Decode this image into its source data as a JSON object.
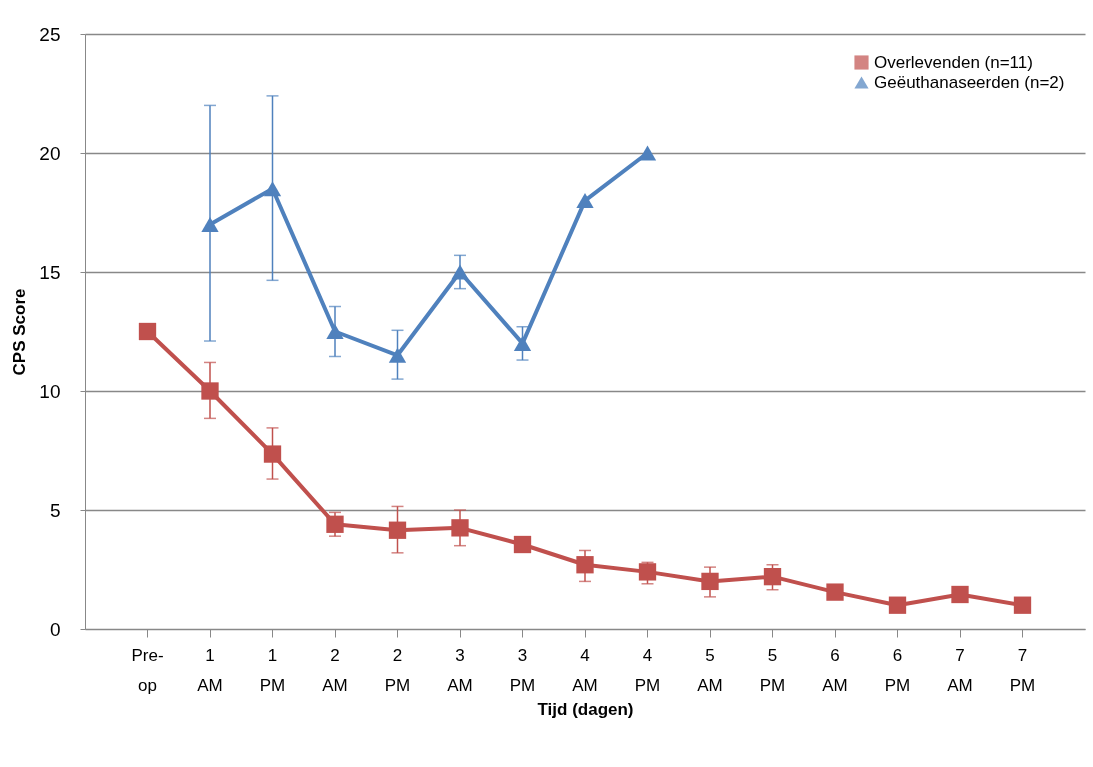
{
  "chart_data": {
    "type": "line",
    "xlabel": "Tijd (dagen)",
    "ylabel": "CPS Score",
    "categories": [
      "Pre-op",
      "1 AM",
      "1 PM",
      "2 AM",
      "2 PM",
      "3 AM",
      "3 PM",
      "4 AM",
      "4 PM",
      "5 AM",
      "5 PM",
      "6 AM",
      "6 PM",
      "7 AM",
      "7 PM"
    ],
    "series": [
      {
        "name": "Overlevenden (n=11)",
        "color": "#c0504d",
        "marker": "square",
        "values": [
          12.5,
          10,
          7.35,
          4.4,
          4.15,
          4.25,
          3.55,
          2.7,
          2.4,
          2.0,
          2.2,
          1.55,
          1.0,
          1.45,
          1.0
        ],
        "errors": [
          null,
          [
            8.85,
            11.2
          ],
          [
            6.3,
            8.45
          ],
          [
            3.9,
            4.9
          ],
          [
            3.2,
            5.15
          ],
          [
            3.5,
            5.0
          ],
          null,
          [
            2.0,
            3.3
          ],
          [
            1.9,
            2.8
          ],
          [
            1.35,
            2.6
          ],
          [
            1.65,
            2.7
          ],
          null,
          null,
          null,
          null
        ]
      },
      {
        "name": "Geëuthanaseerden (n=2)",
        "color": "#4f81bd",
        "marker": "triangle",
        "values": [
          null,
          17,
          18.5,
          12.5,
          11.5,
          15,
          12,
          18,
          20,
          null,
          null,
          null,
          null,
          null,
          null
        ],
        "errors": [
          null,
          [
            12.1,
            22
          ],
          [
            14.65,
            22.4
          ],
          [
            11.45,
            13.55
          ],
          [
            10.5,
            12.55
          ],
          [
            14.3,
            15.7
          ],
          [
            11.3,
            12.7
          ],
          null,
          null,
          null,
          null,
          null,
          null,
          null,
          null
        ]
      }
    ],
    "ylim": [
      0,
      25
    ],
    "yticks": [
      0,
      5,
      10,
      15,
      20,
      25
    ],
    "grid": "y",
    "legend": "top right",
    "line_style": "solid"
  }
}
